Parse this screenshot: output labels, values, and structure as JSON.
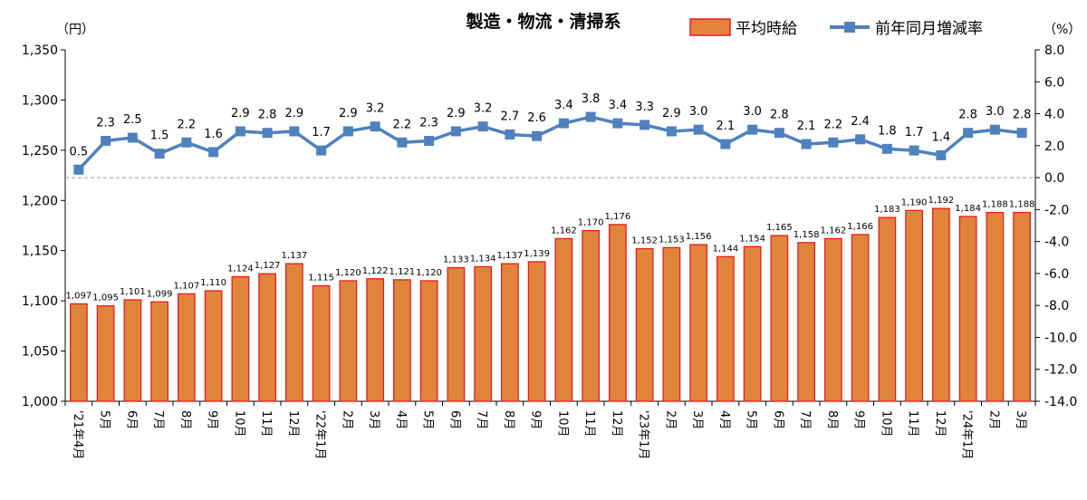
{
  "chart_data": {
    "type": "bar",
    "title": "製造・物流・清掃系",
    "y_unit_left": "（円）",
    "y_unit_right": "（%）",
    "categories": [
      "'21年4月",
      "5月",
      "6月",
      "7月",
      "8月",
      "9月",
      "10月",
      "11月",
      "12月",
      "'22年1月",
      "2月",
      "3月",
      "4月",
      "5月",
      "6月",
      "7月",
      "8月",
      "9月",
      "10月",
      "11月",
      "12月",
      "'23年1月",
      "2月",
      "3月",
      "4月",
      "5月",
      "6月",
      "7月",
      "8月",
      "9月",
      "10月",
      "11月",
      "12月",
      "'24年1月",
      "2月",
      "3月"
    ],
    "series": [
      {
        "name": "平均時給",
        "type": "bar",
        "axis": "left",
        "color": "#E0843C",
        "edge_color": "#E81C1C",
        "values": [
          1097,
          1095,
          1101,
          1099,
          1107,
          1110,
          1124,
          1127,
          1137,
          1115,
          1120,
          1122,
          1121,
          1120,
          1133,
          1134,
          1137,
          1139,
          1162,
          1170,
          1176,
          1152,
          1153,
          1156,
          1144,
          1154,
          1165,
          1158,
          1162,
          1166,
          1183,
          1190,
          1192,
          1184,
          1188,
          1188
        ],
        "labels": [
          "1,097",
          "1,095",
          "1,101",
          "1,099",
          "1,107",
          "1,110",
          "1,124",
          "1,127",
          "1,137",
          "1,115",
          "1,120",
          "1,122",
          "1,121",
          "1,120",
          "1,133",
          "1,134",
          "1,137",
          "1,139",
          "1,162",
          "1,170",
          "1,176",
          "1,152",
          "1,153",
          "1,156",
          "1,144",
          "1,154",
          "1,165",
          "1,158",
          "1,162",
          "1,166",
          "1,183",
          "1,190",
          "1,192",
          "1,184",
          "1,188",
          "1,188"
        ]
      },
      {
        "name": "前年同月増減率",
        "type": "line",
        "axis": "right",
        "color": "#4F81BD",
        "values": [
          0.5,
          2.3,
          2.5,
          1.5,
          2.2,
          1.6,
          2.9,
          2.8,
          2.9,
          1.7,
          2.9,
          3.2,
          2.2,
          2.3,
          2.9,
          3.2,
          2.7,
          2.6,
          3.4,
          3.8,
          3.4,
          3.3,
          2.9,
          3.0,
          2.1,
          3.0,
          2.8,
          2.1,
          2.2,
          2.4,
          1.8,
          1.7,
          1.4,
          2.8,
          3.0,
          2.8
        ],
        "labels": [
          "0.5",
          "2.3",
          "2.5",
          "1.5",
          "2.2",
          "1.6",
          "2.9",
          "2.8",
          "2.9",
          "1.7",
          "2.9",
          "3.2",
          "2.2",
          "2.3",
          "2.9",
          "3.2",
          "2.7",
          "2.6",
          "3.4",
          "3.8",
          "3.4",
          "3.3",
          "2.9",
          "3.0",
          "2.1",
          "3.0",
          "2.8",
          "2.1",
          "2.2",
          "2.4",
          "1.8",
          "1.7",
          "1.4",
          "2.8",
          "3.0",
          "2.8"
        ]
      }
    ],
    "y_left": {
      "ylim": [
        1000,
        1350
      ],
      "ticks": [
        "1,000",
        "1,050",
        "1,100",
        "1,150",
        "1,200",
        "1,250",
        "1,300",
        "1,350"
      ]
    },
    "y_right": {
      "ylim": [
        -14.0,
        8.0
      ],
      "ticks": [
        "-14.0",
        "-12.0",
        "-10.0",
        "-8.0",
        "-6.0",
        "-4.0",
        "-2.0",
        "0.0",
        "2.0",
        "4.0",
        "6.0",
        "8.0"
      ]
    },
    "zero_line": "dashed",
    "grid": false,
    "legend_position": "top-right"
  }
}
